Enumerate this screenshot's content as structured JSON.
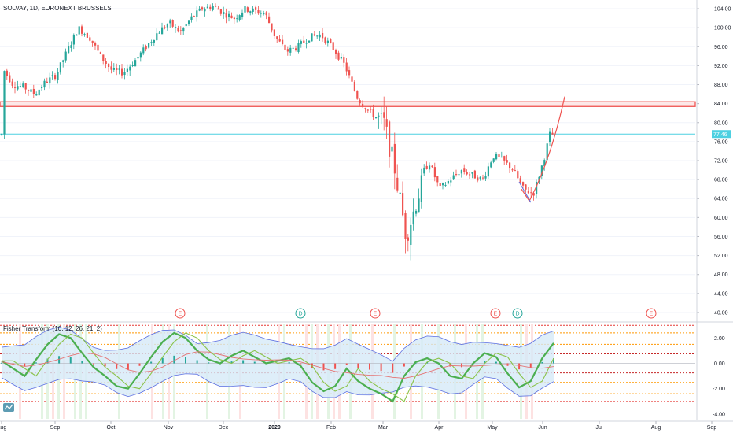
{
  "header": {
    "title": "SOLVAY, 1D, EURONEXT BRUSSELS"
  },
  "indicator": {
    "title": "Fisher Transform (10, 12, 26, 21, 2)"
  },
  "colors": {
    "up": "#26a69a",
    "down": "#ef5350",
    "resistance": "#ef9a9a",
    "price_line": "#4dd0e1",
    "fisher": "#4caf50",
    "trigger": "#8bc34a",
    "band": "#5b6ee1",
    "band_fill": "#d6eaf8",
    "hist_up": "#26a69a",
    "hist_down": "#ef5350"
  },
  "chart_data": [
    {
      "type": "candlestick",
      "title": "SOLVAY, 1D, EURONEXT BRUSSELS",
      "xlabel": "",
      "ylabel": "",
      "ylim": [
        38.5,
        105.5
      ],
      "y_ticks": [
        "104.00",
        "100.00",
        "96.00",
        "92.00",
        "88.00",
        "84.00",
        "80.00",
        "76.00",
        "72.00",
        "68.00",
        "64.00",
        "60.00",
        "56.00",
        "52.00",
        "48.00",
        "44.00",
        "40.00"
      ],
      "x_ticks": [
        "Aug",
        "Sep",
        "Oct",
        "Nov",
        "Dec",
        "2020",
        "Feb",
        "Mar",
        "Apr",
        "May",
        "Jun",
        "Jul",
        "Aug",
        "Sep"
      ],
      "last_price_label": "77.46",
      "resistance_zone": [
        83.4,
        84.4
      ],
      "price_line": 77.6,
      "events": [
        {
          "month": "Nov",
          "letter": "E"
        },
        {
          "month": "2020",
          "letter": "D"
        },
        {
          "month": "Feb",
          "letter": "E"
        },
        {
          "month": "May",
          "letter": "E"
        },
        {
          "month": "May",
          "letter": "D"
        },
        {
          "month": "Aug",
          "letter": "E"
        }
      ],
      "series": [
        {
          "name": "",
          "anchors": [
            [
              "Aug",
              91.5
            ],
            [
              "Aug",
              88
            ],
            [
              "Aug",
              87.5
            ],
            [
              "Aug",
              86
            ],
            [
              "Aug",
              88.5
            ],
            [
              "Sep",
              90
            ],
            [
              "Sep",
              95
            ],
            [
              "Sep",
              100
            ],
            [
              "Sep",
              98
            ],
            [
              "Sep",
              94
            ],
            [
              "Oct",
              91
            ],
            [
              "Oct",
              90.5
            ],
            [
              "Oct",
              93
            ],
            [
              "Oct",
              96
            ],
            [
              "Oct",
              99
            ],
            [
              "Nov",
              101
            ],
            [
              "Nov",
              99
            ],
            [
              "Nov",
              102
            ],
            [
              "Nov",
              104
            ],
            [
              "Nov",
              104.5
            ],
            [
              "Dec",
              103
            ],
            [
              "Dec",
              102
            ],
            [
              "Dec",
              104
            ],
            [
              "Dec",
              103.5
            ],
            [
              "Dec",
              103
            ],
            [
              "2020",
              98
            ],
            [
              "2020",
              95
            ],
            [
              "2020",
              96
            ],
            [
              "2020",
              98
            ],
            [
              "2020",
              98.5
            ],
            [
              "Feb",
              96
            ],
            [
              "Feb",
              92
            ],
            [
              "Feb",
              85
            ],
            [
              "Feb",
              82
            ],
            [
              "Mar",
              80
            ],
            [
              "Mar",
              70
            ],
            [
              "Mar",
              56
            ],
            [
              "Mar",
              64
            ],
            [
              "Mar",
              72
            ],
            [
              "Apr",
              66
            ],
            [
              "Apr",
              68
            ],
            [
              "Apr",
              70
            ],
            [
              "Apr",
              69
            ],
            [
              "Apr",
              68
            ],
            [
              "May",
              73
            ],
            [
              "May",
              72
            ],
            [
              "May",
              70
            ],
            [
              "May",
              66
            ],
            [
              "May",
              65
            ],
            [
              "Jun",
              72
            ],
            [
              "Jun",
              77.5
            ]
          ]
        }
      ]
    },
    {
      "type": "line",
      "title": "Fisher Transform (10, 12, 26, 21, 2)",
      "ylim": [
        -4.5,
        3.2
      ],
      "y_ticks": [
        "2.00",
        "0.00",
        "-2.00",
        "-4.00"
      ],
      "levels": [
        3.0,
        2.4,
        1.5,
        0.75,
        -0.75,
        -1.5,
        -2.4,
        -3.0
      ],
      "series": [
        {
          "name": "",
          "values": [
            0.2,
            -0.4,
            -1.0,
            0.3,
            1.5,
            2.3,
            2.0,
            0.8,
            -0.3,
            -1.0,
            -1.8,
            -2.0,
            -0.8,
            0.5,
            1.7,
            2.4,
            2.0,
            1.0,
            0.3,
            0.0,
            0.6,
            1.0,
            0.5,
            0.0,
            0.2,
            0.4,
            -0.2,
            -1.5,
            -2.2,
            -1.8,
            -0.4,
            -1.4,
            -2.0,
            -2.4,
            -3.0,
            -1.0,
            0.1,
            0.4,
            0.0,
            -1.0,
            -1.2,
            0.0,
            0.8,
            0.5,
            -0.8,
            -1.9,
            -1.4,
            0.4,
            1.6
          ]
        }
      ]
    }
  ]
}
